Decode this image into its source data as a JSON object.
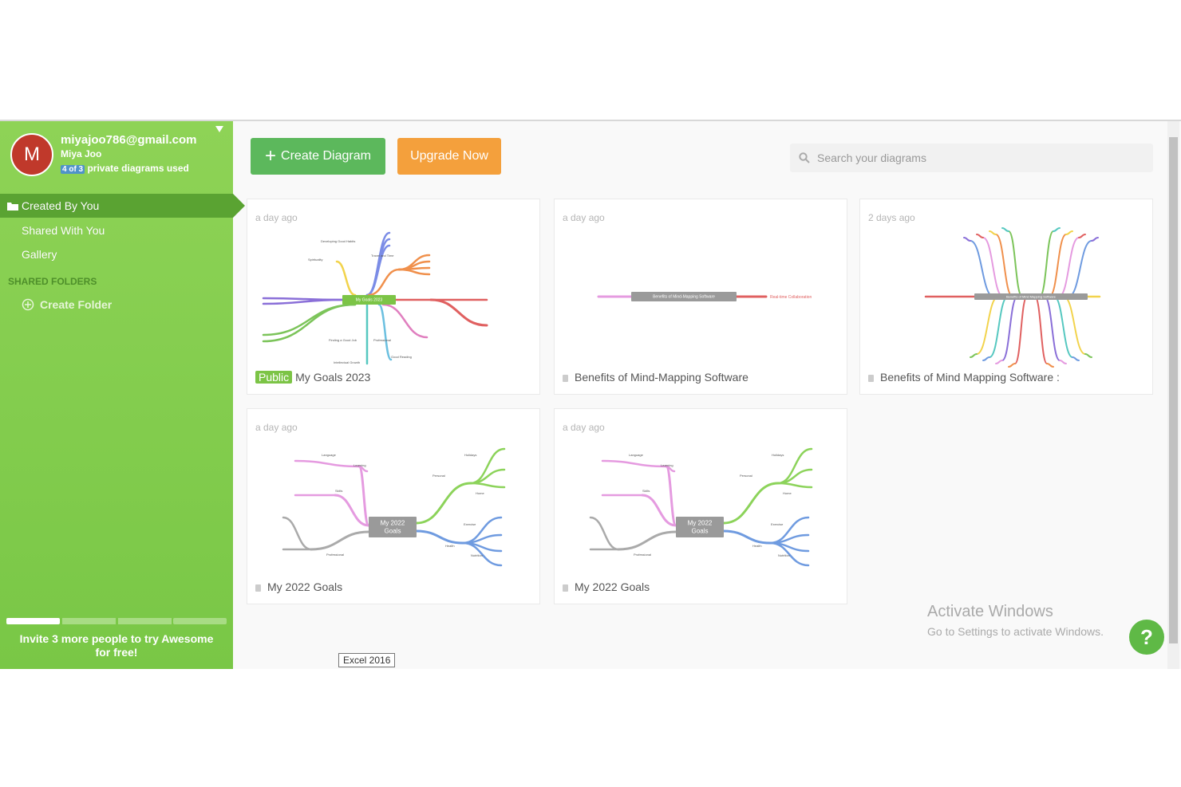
{
  "sidebar": {
    "avatar": "M",
    "email": "miyajoo786@gmail.com",
    "name": "Miya Joo",
    "usage_badge": "4 of 3",
    "usage_text": "private diagrams used",
    "nav": [
      "Created By You",
      "Shared With You",
      "Gallery"
    ],
    "shared_folders_heading": "SHARED FOLDERS",
    "create_folder": "Create Folder",
    "invite": "Invite 3 more people to try Awesome for free!"
  },
  "toolbar": {
    "create": "Create Diagram",
    "upgrade": "Upgrade Now",
    "search_placeholder": "Search your diagrams"
  },
  "cards": [
    {
      "time": "a day ago",
      "badge": "Public",
      "title": "My Goals 2023",
      "thumbnail": {
        "center": [
          "My Goals 2023"
        ],
        "labels": [
          "Developing Good Habits",
          "Spirituality",
          "Travel and Time",
          "Finding a Good Job",
          "Professional",
          "Intellectual Growth",
          "Good Reading"
        ]
      }
    },
    {
      "time": "a day ago",
      "title": "Benefits of Mind-Mapping Software",
      "thumbnail": {
        "center": [
          "Benefits of Mind-Mapping Software"
        ],
        "labels": [
          "Real-time Collaboration"
        ]
      }
    },
    {
      "time": "2 days ago",
      "title": "Benefits of Mind Mapping Software :",
      "thumbnail": {
        "center": [
          "Benefits of Mind Mapping Software"
        ],
        "labels": []
      }
    },
    {
      "time": "a day ago",
      "title": "My 2022 Goals",
      "thumbnail": {
        "center": [
          "My 2022",
          "Goals"
        ],
        "labels": [
          "Language",
          "Learning",
          "Skills",
          "Holidays",
          "Personal",
          "Home",
          "Exercise",
          "Health",
          "Nutrition",
          "Professional"
        ]
      }
    },
    {
      "time": "a day ago",
      "title": "My 2022 Goals",
      "thumbnail": {
        "center": [
          "My 2022",
          "Goals"
        ],
        "labels": [
          "Language",
          "Learning",
          "Skills",
          "Holidays",
          "Personal",
          "Home",
          "Exercise",
          "Health",
          "Nutrition",
          "Professional"
        ]
      }
    }
  ],
  "tooltip": "Excel 2016",
  "watermark": {
    "title": "Activate Windows",
    "subtitle": "Go to Settings to activate Windows."
  },
  "help": "?"
}
